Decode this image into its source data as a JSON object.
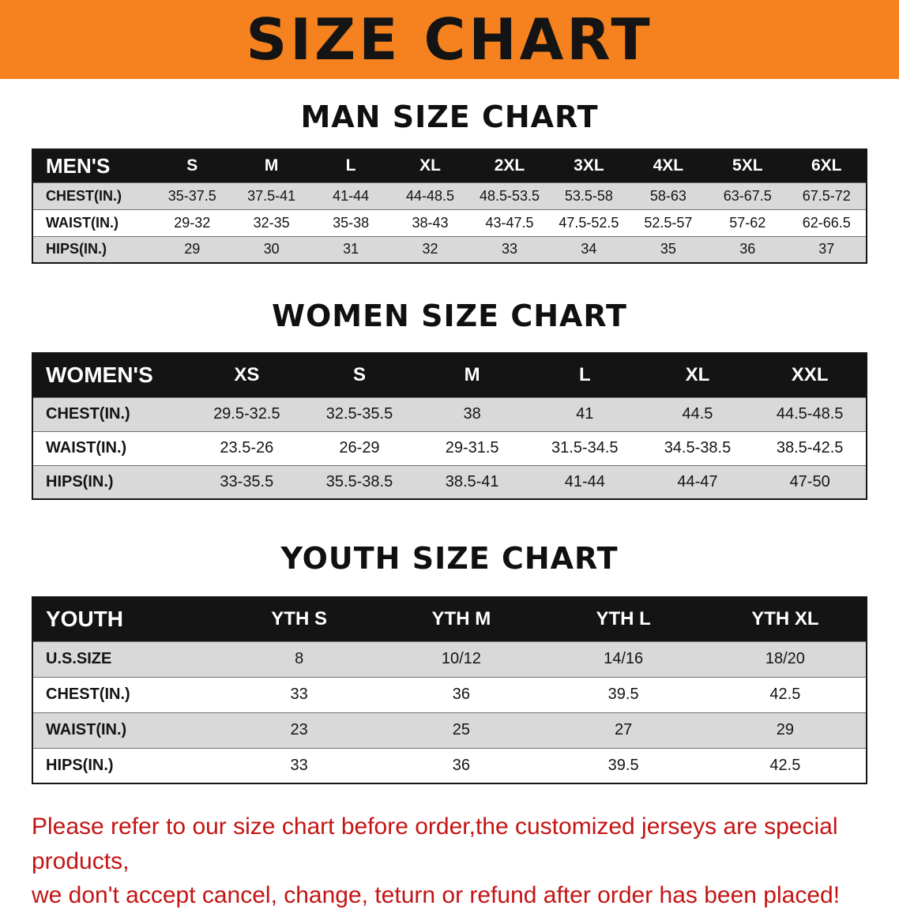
{
  "banner": {
    "title": "SIZE CHART",
    "bg_color": "#f5821f"
  },
  "sections": [
    {
      "heading": "MAN SIZE CHART",
      "table": {
        "header": [
          "MEN'S",
          "S",
          "M",
          "L",
          "XL",
          "2XL",
          "3XL",
          "4XL",
          "5XL",
          "6XL"
        ],
        "rows": [
          [
            "CHEST(IN.)",
            "35-37.5",
            "37.5-41",
            "41-44",
            "44-48.5",
            "48.5-53.5",
            "53.5-58",
            "58-63",
            "63-67.5",
            "67.5-72"
          ],
          [
            "WAIST(IN.)",
            "29-32",
            "32-35",
            "35-38",
            "38-43",
            "43-47.5",
            "47.5-52.5",
            "52.5-57",
            "57-62",
            "62-66.5"
          ],
          [
            "HIPS(IN.)",
            "29",
            "30",
            "31",
            "32",
            "33",
            "34",
            "35",
            "36",
            "37"
          ]
        ]
      }
    },
    {
      "heading": "WOMEN SIZE CHART",
      "table": {
        "header": [
          "WOMEN'S",
          "XS",
          "S",
          "M",
          "L",
          "XL",
          "XXL"
        ],
        "rows": [
          [
            "CHEST(IN.)",
            "29.5-32.5",
            "32.5-35.5",
            "38",
            "41",
            "44.5",
            "44.5-48.5"
          ],
          [
            "WAIST(IN.)",
            "23.5-26",
            "26-29",
            "29-31.5",
            "31.5-34.5",
            "34.5-38.5",
            "38.5-42.5"
          ],
          [
            "HIPS(IN.)",
            "33-35.5",
            "35.5-38.5",
            "38.5-41",
            "41-44",
            "44-47",
            "47-50"
          ]
        ]
      }
    },
    {
      "heading": "YOUTH SIZE CHART",
      "table": {
        "header": [
          "YOUTH",
          "YTH S",
          "YTH M",
          "YTH L",
          "YTH XL"
        ],
        "rows": [
          [
            "U.S.SIZE",
            "8",
            "10/12",
            "14/16",
            "18/20"
          ],
          [
            "CHEST(IN.)",
            "33",
            "36",
            "39.5",
            "42.5"
          ],
          [
            "WAIST(IN.)",
            "23",
            "25",
            "27",
            "29"
          ],
          [
            "HIPS(IN.)",
            "33",
            "36",
            "39.5",
            "42.5"
          ]
        ]
      }
    }
  ],
  "footer": {
    "line1": "Please refer to our size chart before order,the customized jerseys are special products,",
    "line2": "we don't accept cancel, change, teturn or refund after order has been placed!",
    "text_color": "#c41414"
  }
}
